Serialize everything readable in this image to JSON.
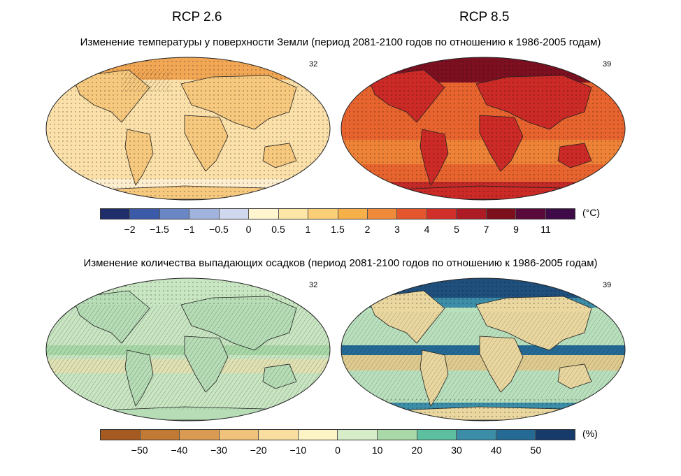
{
  "scenarios": {
    "left": "RCP 2.6",
    "right": "RCP 8.5"
  },
  "temperature": {
    "title": "Изменение температуры у поверхности Земли (период 2081-2100 годов по отношению к 1986-2005 годам)",
    "left_count": "32",
    "right_count": "39",
    "unit": "(°C)",
    "ticks": [
      "−2",
      "−1.5",
      "−1",
      "−0.5",
      "0",
      "0.5",
      "1",
      "1.5",
      "2",
      "3",
      "4",
      "5",
      "7",
      "9",
      "11"
    ],
    "colors": [
      "#1f2d6b",
      "#3b5aa8",
      "#6a86c4",
      "#9fb3dc",
      "#cfd8ee",
      "#fff6cf",
      "#fde6a6",
      "#fbcf78",
      "#f6b04a",
      "#ef8a3a",
      "#e4562e",
      "#d1302a",
      "#ad1c24",
      "#7d0e1c",
      "#5a0a3a",
      "#3e0a48"
    ],
    "left_map": {
      "ocean": "#fbe0a9",
      "land": "#f7c97e",
      "accent": "#f1a14b"
    },
    "right_map": {
      "ocean": "#e8642f",
      "land": "#cc2a26",
      "accent": "#7c1020"
    }
  },
  "precipitation": {
    "title": "Изменение количества выпадающих осадков (период 2081-2100 годов по отношению к 1986-2005 годам)",
    "left_count": "32",
    "right_count": "39",
    "unit": "(%)",
    "ticks": [
      "−50",
      "−40",
      "−30",
      "−20",
      "−10",
      "0",
      "10",
      "20",
      "30",
      "40",
      "50"
    ],
    "colors": [
      "#a55a21",
      "#c07a34",
      "#d99a52",
      "#f0c27c",
      "#f9dea0",
      "#fdf4c6",
      "#d7ecc8",
      "#a9d9a8",
      "#5cbfa0",
      "#3c8ea8",
      "#246a94",
      "#163b6a"
    ],
    "left_map": {
      "ocean": "#c9e6c3",
      "land": "#b6ddb6",
      "accent": "#f4dfa6"
    },
    "right_map": {
      "ocean": "#b9e0bd",
      "land": "#e9d79f",
      "accent": "#1f4f7c"
    }
  }
}
